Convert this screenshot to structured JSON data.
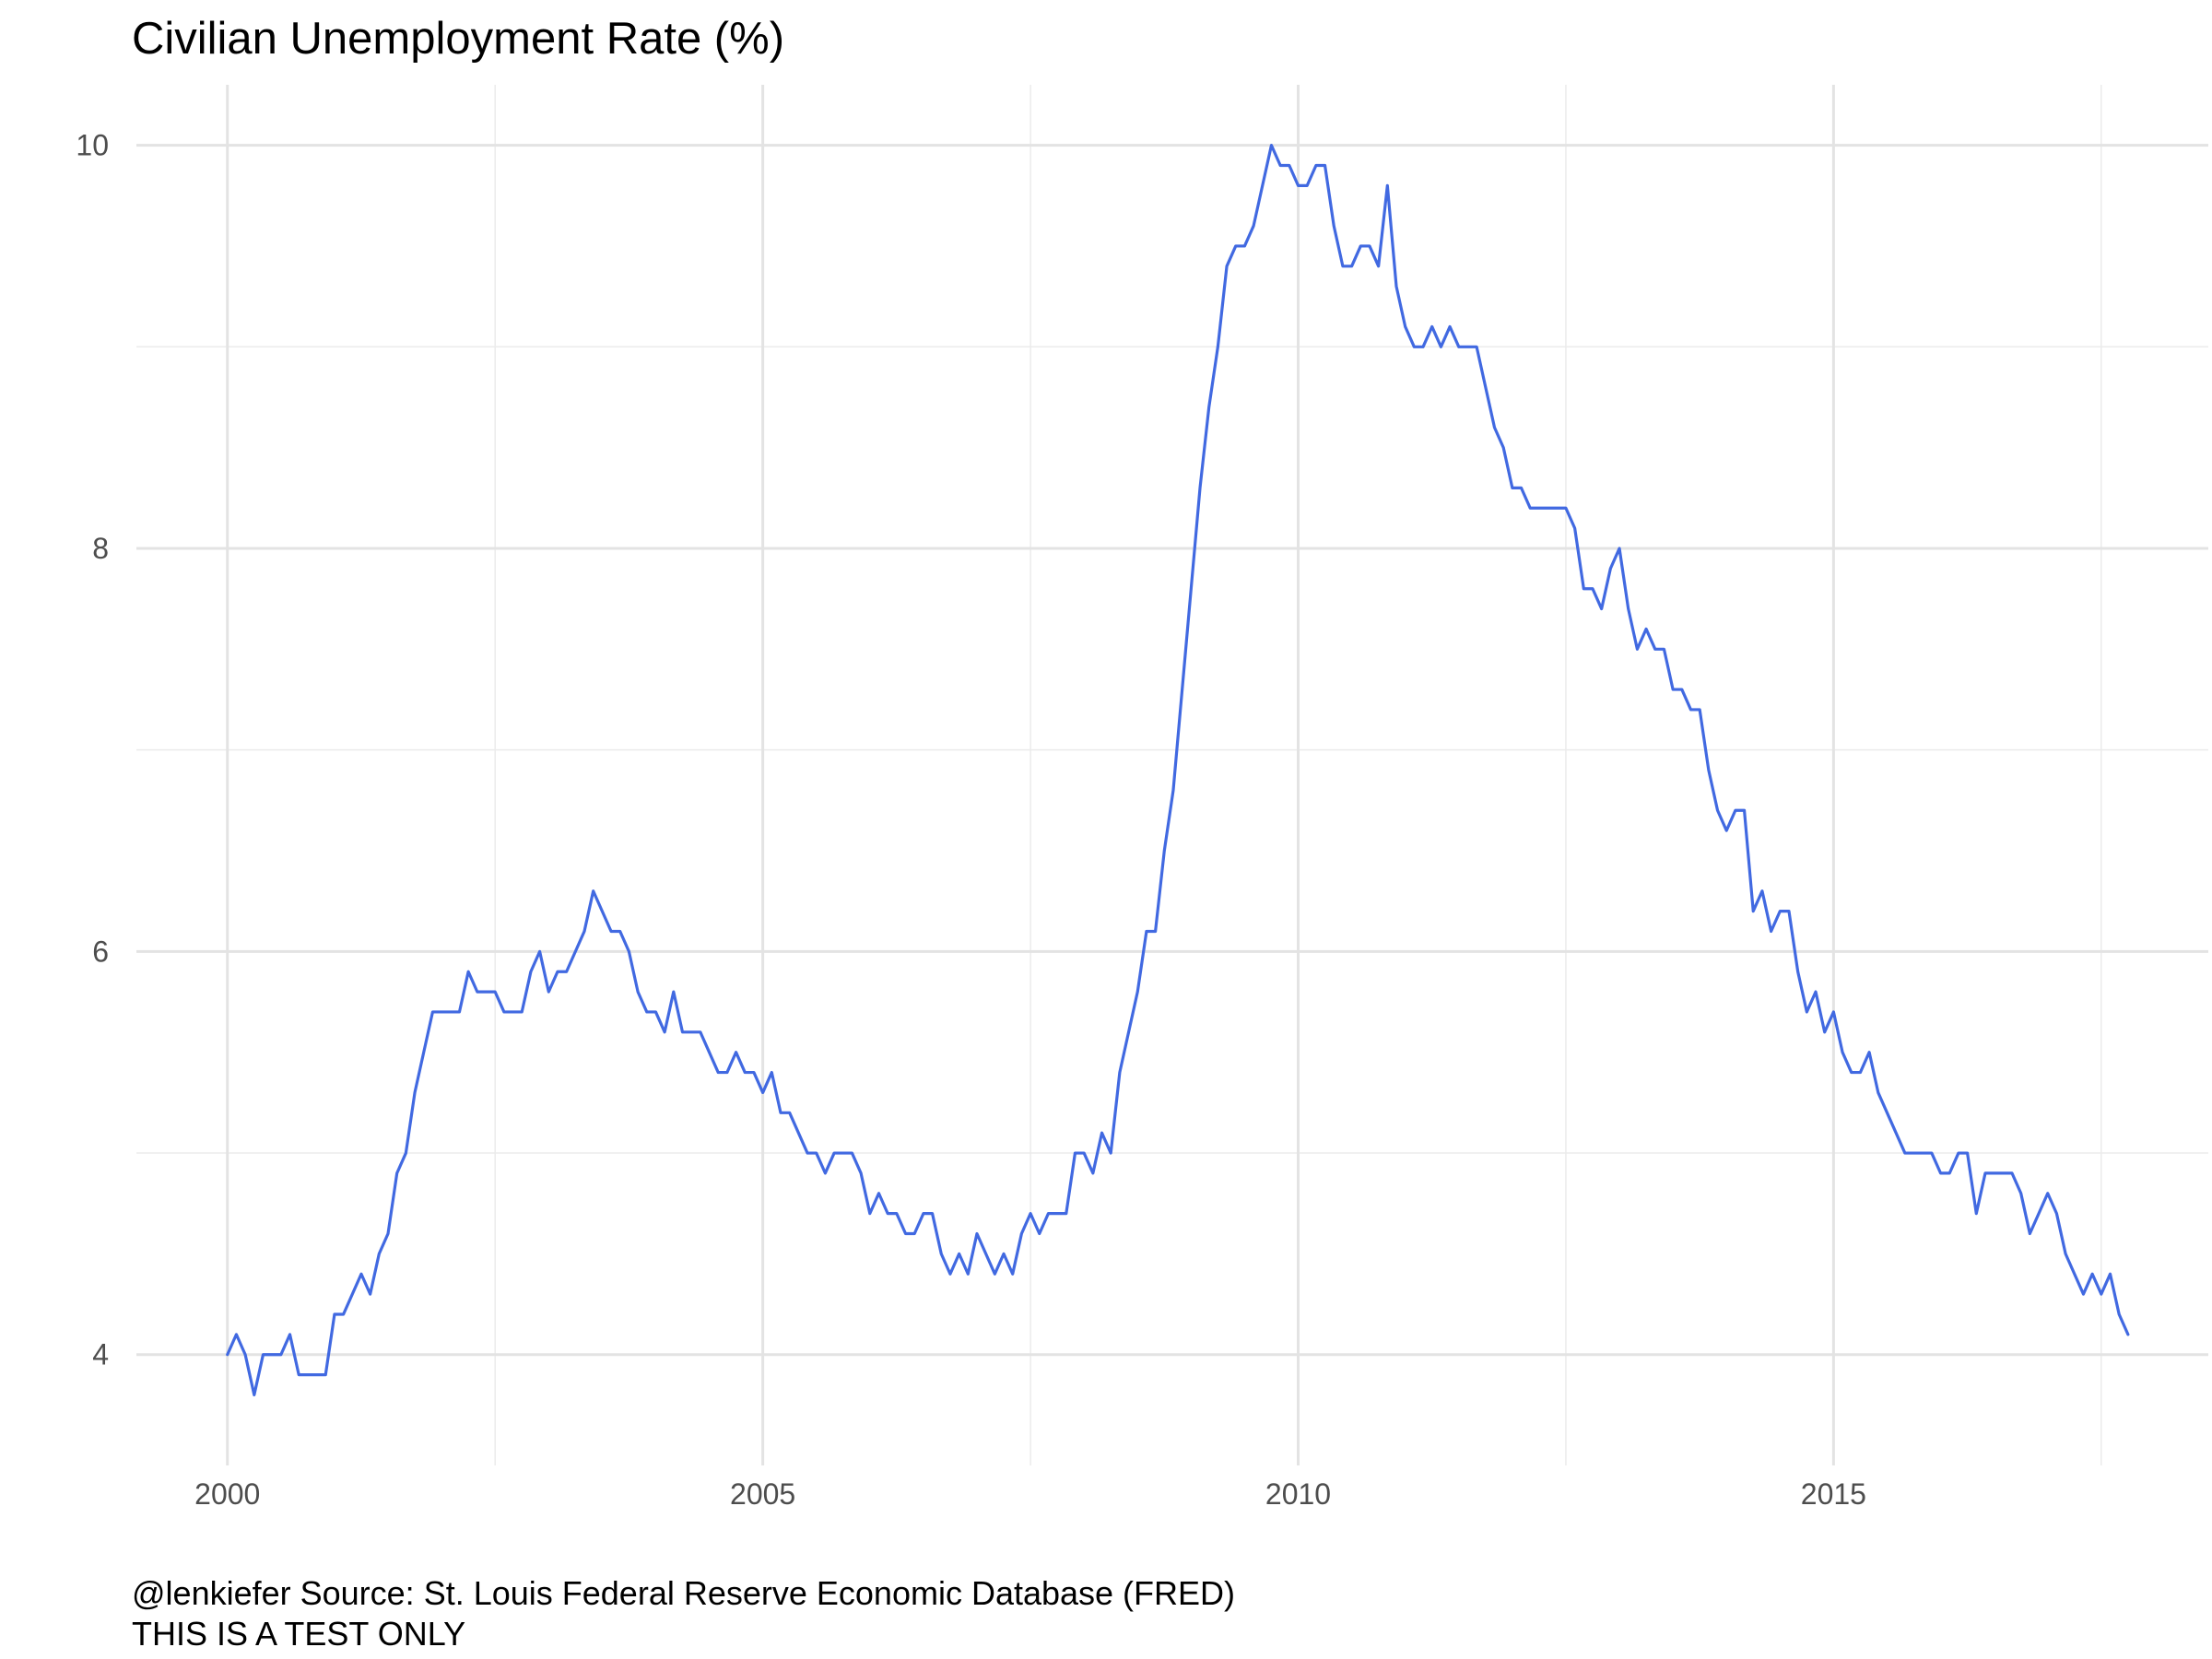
{
  "chart_data": {
    "type": "line",
    "title": "Civilian Unemployment Rate (%)",
    "caption_lines": [
      "@lenkiefer Source: St. Louis Federal Reserve Economic Database (FRED)",
      "THIS IS A TEST ONLY"
    ],
    "xlabel": "",
    "ylabel": "",
    "x_ticks": [
      2000,
      2005,
      2010,
      2015
    ],
    "y_ticks": [
      4,
      6,
      8,
      10
    ],
    "xlim": [
      1999.15,
      2018.5
    ],
    "ylim": [
      3.45,
      10.3
    ],
    "grid": true,
    "legend": "none",
    "line_color": "#4169E1",
    "series": [
      {
        "start_year": 2000,
        "start_month": 1,
        "frequency": "monthly",
        "values": [
          4.0,
          4.1,
          4.0,
          3.8,
          4.0,
          4.0,
          4.0,
          4.1,
          3.9,
          3.9,
          3.9,
          3.9,
          4.2,
          4.2,
          4.3,
          4.4,
          4.3,
          4.5,
          4.6,
          4.9,
          5.0,
          5.3,
          5.5,
          5.7,
          5.7,
          5.7,
          5.7,
          5.9,
          5.8,
          5.8,
          5.8,
          5.7,
          5.7,
          5.7,
          5.9,
          6.0,
          5.8,
          5.9,
          5.9,
          6.0,
          6.1,
          6.3,
          6.2,
          6.1,
          6.1,
          6.0,
          5.8,
          5.7,
          5.7,
          5.6,
          5.8,
          5.6,
          5.6,
          5.6,
          5.5,
          5.4,
          5.4,
          5.5,
          5.4,
          5.4,
          5.3,
          5.4,
          5.2,
          5.2,
          5.1,
          5.0,
          5.0,
          4.9,
          5.0,
          5.0,
          5.0,
          4.9,
          4.7,
          4.8,
          4.7,
          4.7,
          4.6,
          4.6,
          4.7,
          4.7,
          4.5,
          4.4,
          4.5,
          4.4,
          4.6,
          4.5,
          4.4,
          4.5,
          4.4,
          4.6,
          4.7,
          4.6,
          4.7,
          4.7,
          4.7,
          5.0,
          5.0,
          4.9,
          5.1,
          5.0,
          5.4,
          5.6,
          5.8,
          6.1,
          6.1,
          6.5,
          6.8,
          7.3,
          7.8,
          8.3,
          8.7,
          9.0,
          9.4,
          9.5,
          9.5,
          9.6,
          9.8,
          10.0,
          9.9,
          9.9,
          9.8,
          9.8,
          9.9,
          9.9,
          9.6,
          9.4,
          9.4,
          9.5,
          9.5,
          9.4,
          9.8,
          9.3,
          9.1,
          9.0,
          9.0,
          9.1,
          9.0,
          9.1,
          9.0,
          9.0,
          9.0,
          8.8,
          8.6,
          8.5,
          8.3,
          8.3,
          8.2,
          8.2,
          8.2,
          8.2,
          8.2,
          8.1,
          7.8,
          7.8,
          7.7,
          7.9,
          8.0,
          7.7,
          7.5,
          7.6,
          7.5,
          7.5,
          7.3,
          7.3,
          7.2,
          7.2,
          6.9,
          6.7,
          6.6,
          6.7,
          6.7,
          6.2,
          6.3,
          6.1,
          6.2,
          6.2,
          5.9,
          5.7,
          5.8,
          5.6,
          5.7,
          5.5,
          5.4,
          5.4,
          5.5,
          5.3,
          5.2,
          5.1,
          5.0,
          5.0,
          5.0,
          5.0,
          4.9,
          4.9,
          5.0,
          5.0,
          4.7,
          4.9,
          4.9,
          4.9,
          4.9,
          4.8,
          4.6,
          4.7,
          4.8,
          4.7,
          4.5,
          4.4,
          4.3,
          4.4,
          4.3,
          4.4,
          4.2,
          4.1
        ]
      }
    ]
  }
}
